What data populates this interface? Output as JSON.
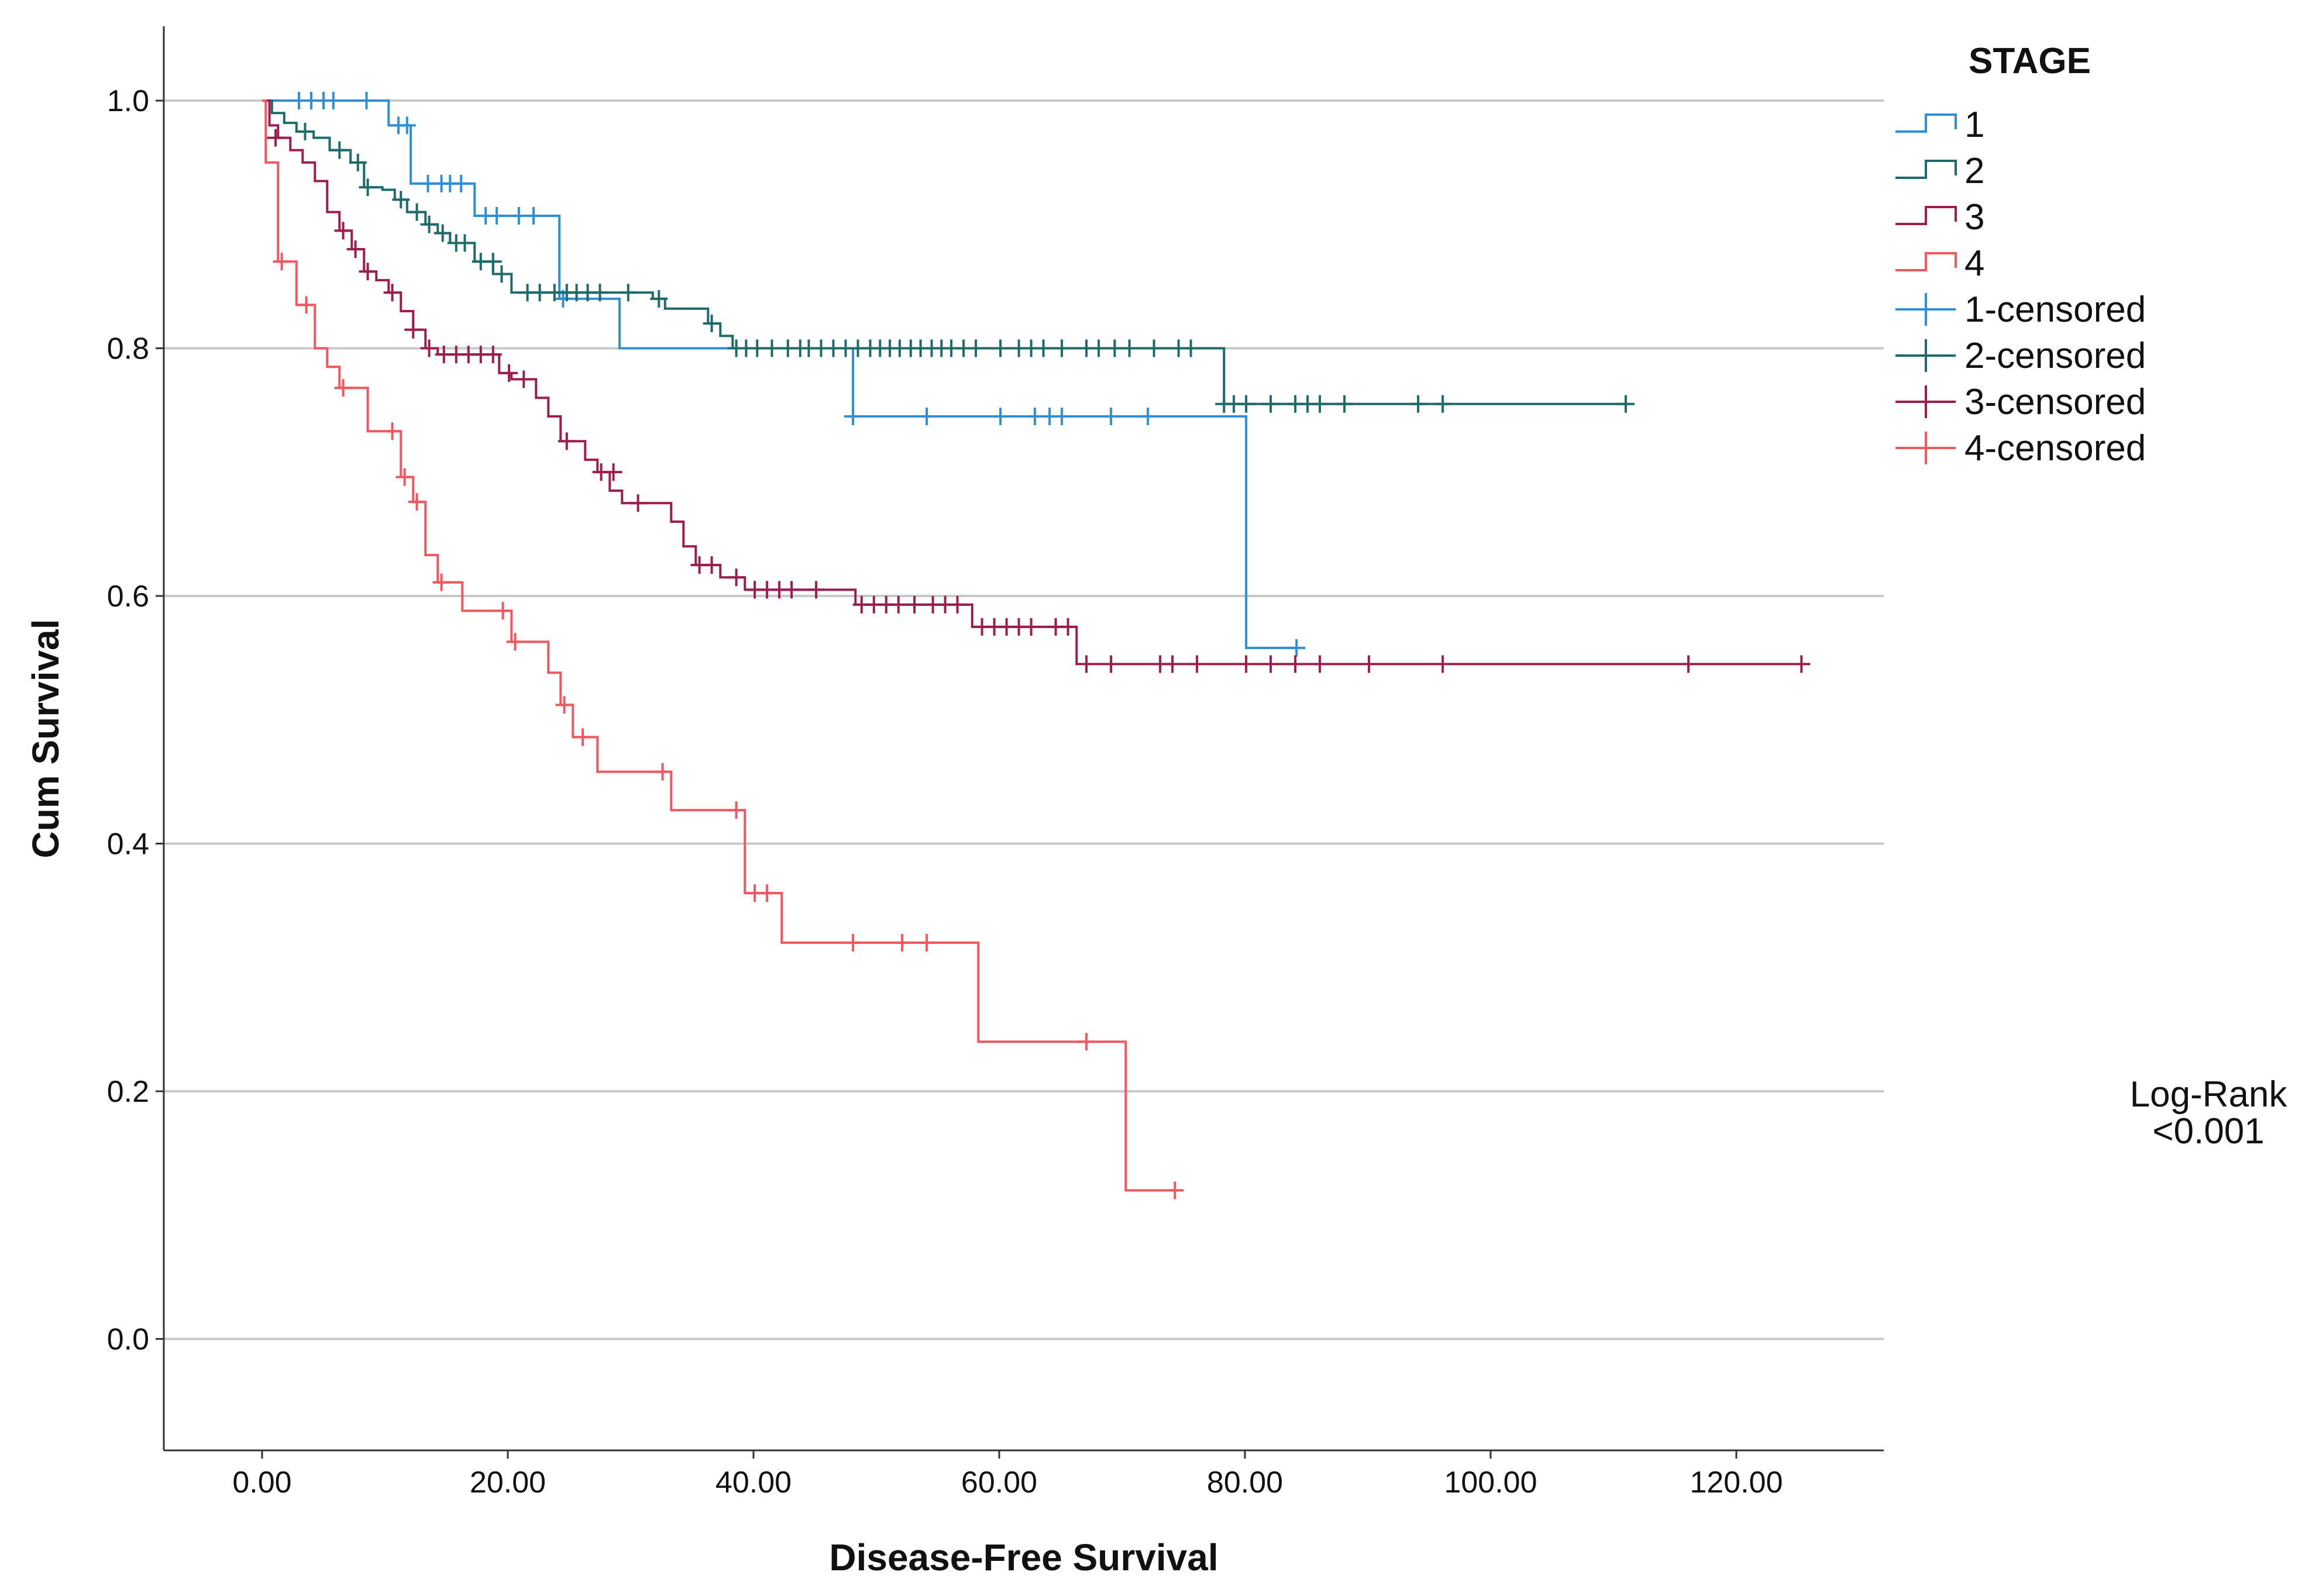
{
  "chart_data": {
    "type": "line",
    "subtype": "kaplan-meier step curves",
    "xlabel": "Disease-Free Survival",
    "ylabel": "Cum Survival",
    "xlim": [
      -8,
      132
    ],
    "ylim": [
      -0.09,
      1.06
    ],
    "x_ticks": [
      0,
      20,
      40,
      60,
      80,
      100,
      120
    ],
    "x_tick_labels": [
      "0.00",
      "20.00",
      "40.00",
      "60.00",
      "80.00",
      "100.00",
      "120.00"
    ],
    "y_ticks": [
      0.0,
      0.2,
      0.4,
      0.6,
      0.8,
      1.0
    ],
    "y_tick_labels": [
      "0.0",
      "0.2",
      "0.4",
      "0.6",
      "0.8",
      "1.0"
    ],
    "grid": "horizontal",
    "legend": {
      "title": "STAGE",
      "position": "right-top",
      "entries": [
        {
          "label": "1",
          "kind": "line",
          "series": 0
        },
        {
          "label": "2",
          "kind": "line",
          "series": 1
        },
        {
          "label": "3",
          "kind": "line",
          "series": 2
        },
        {
          "label": "4",
          "kind": "line",
          "series": 3
        },
        {
          "label": "1-censored",
          "kind": "censor",
          "series": 0
        },
        {
          "label": "2-censored",
          "kind": "censor",
          "series": 1
        },
        {
          "label": "3-censored",
          "kind": "censor",
          "series": 2
        },
        {
          "label": "4-censored",
          "kind": "censor",
          "series": 3
        }
      ]
    },
    "annotation": {
      "line1": "Log-Rank",
      "line2": "<0.001"
    },
    "series": [
      {
        "name": "1",
        "color": "#2e8fd6",
        "steps": [
          [
            0,
            1.0
          ],
          [
            10.3,
            0.98
          ],
          [
            12.1,
            0.933
          ],
          [
            17.3,
            0.907
          ],
          [
            24.2,
            0.84
          ],
          [
            29.1,
            0.8
          ],
          [
            48.1,
            0.745
          ],
          [
            80.1,
            0.558
          ],
          [
            84.2,
            0.558
          ]
        ],
        "censored": [
          [
            3,
            1.0
          ],
          [
            4,
            1.0
          ],
          [
            5,
            1.0
          ],
          [
            5.8,
            1.0
          ],
          [
            8.5,
            1.0
          ],
          [
            11.1,
            0.98
          ],
          [
            11.8,
            0.98
          ],
          [
            13.5,
            0.933
          ],
          [
            14.6,
            0.933
          ],
          [
            15.3,
            0.933
          ],
          [
            16.2,
            0.933
          ],
          [
            18.2,
            0.907
          ],
          [
            19.1,
            0.907
          ],
          [
            20.9,
            0.907
          ],
          [
            22.1,
            0.907
          ],
          [
            24.5,
            0.84
          ],
          [
            48.1,
            0.745
          ],
          [
            54.1,
            0.745
          ],
          [
            60.1,
            0.745
          ],
          [
            62.9,
            0.745
          ],
          [
            64.1,
            0.745
          ],
          [
            65.1,
            0.745
          ],
          [
            69.1,
            0.745
          ],
          [
            72.1,
            0.745
          ],
          [
            84.2,
            0.558
          ]
        ]
      },
      {
        "name": "2",
        "color": "#1f6b6b",
        "steps": [
          [
            0,
            1.0
          ],
          [
            0.8,
            0.99
          ],
          [
            1.8,
            0.982
          ],
          [
            2.8,
            0.975
          ],
          [
            4.2,
            0.97
          ],
          [
            5.5,
            0.96
          ],
          [
            7.2,
            0.95
          ],
          [
            8.3,
            0.93
          ],
          [
            9.8,
            0.928
          ],
          [
            10.8,
            0.92
          ],
          [
            11.8,
            0.91
          ],
          [
            13.3,
            0.9
          ],
          [
            14.3,
            0.893
          ],
          [
            15.3,
            0.885
          ],
          [
            17.3,
            0.87
          ],
          [
            18.8,
            0.86
          ],
          [
            20.3,
            0.845
          ],
          [
            31.8,
            0.84
          ],
          [
            32.8,
            0.832
          ],
          [
            36.3,
            0.82
          ],
          [
            37.3,
            0.81
          ],
          [
            38.3,
            0.8
          ],
          [
            78.3,
            0.755
          ],
          [
            111,
            0.755
          ]
        ],
        "censored": [
          [
            3.5,
            0.975
          ],
          [
            6.3,
            0.96
          ],
          [
            7.8,
            0.95
          ],
          [
            8.6,
            0.93
          ],
          [
            11.3,
            0.92
          ],
          [
            12.6,
            0.91
          ],
          [
            13.6,
            0.9
          ],
          [
            14.7,
            0.893
          ],
          [
            15.8,
            0.885
          ],
          [
            16.5,
            0.885
          ],
          [
            17.8,
            0.87
          ],
          [
            18.8,
            0.87
          ],
          [
            19.5,
            0.86
          ],
          [
            21.6,
            0.845
          ],
          [
            22.6,
            0.845
          ],
          [
            23.8,
            0.845
          ],
          [
            24.8,
            0.845
          ],
          [
            25.6,
            0.845
          ],
          [
            26.5,
            0.845
          ],
          [
            27.5,
            0.845
          ],
          [
            29.8,
            0.845
          ],
          [
            32.3,
            0.84
          ],
          [
            36.6,
            0.82
          ],
          [
            38.6,
            0.8
          ],
          [
            39.4,
            0.8
          ],
          [
            40.3,
            0.8
          ],
          [
            41.5,
            0.8
          ],
          [
            42.8,
            0.8
          ],
          [
            43.8,
            0.8
          ],
          [
            44.5,
            0.8
          ],
          [
            45.5,
            0.8
          ],
          [
            46.5,
            0.8
          ],
          [
            47.5,
            0.8
          ],
          [
            48.5,
            0.8
          ],
          [
            49.5,
            0.8
          ],
          [
            50.3,
            0.8
          ],
          [
            51.1,
            0.8
          ],
          [
            51.9,
            0.8
          ],
          [
            52.8,
            0.8
          ],
          [
            53.6,
            0.8
          ],
          [
            54.5,
            0.8
          ],
          [
            55.3,
            0.8
          ],
          [
            56.1,
            0.8
          ],
          [
            57.1,
            0.8
          ],
          [
            58.1,
            0.8
          ],
          [
            60.1,
            0.8
          ],
          [
            61.6,
            0.8
          ],
          [
            62.6,
            0.8
          ],
          [
            63.6,
            0.8
          ],
          [
            65.1,
            0.8
          ],
          [
            67.1,
            0.8
          ],
          [
            68.1,
            0.8
          ],
          [
            69.4,
            0.8
          ],
          [
            70.6,
            0.8
          ],
          [
            72.6,
            0.8
          ],
          [
            74.6,
            0.8
          ],
          [
            75.6,
            0.8
          ],
          [
            78.3,
            0.755
          ],
          [
            79.1,
            0.755
          ],
          [
            80.1,
            0.755
          ],
          [
            82.1,
            0.755
          ],
          [
            84.1,
            0.755
          ],
          [
            85.1,
            0.755
          ],
          [
            86.1,
            0.755
          ],
          [
            88.1,
            0.755
          ],
          [
            94.1,
            0.755
          ],
          [
            96.1,
            0.755
          ],
          [
            111,
            0.755
          ]
        ]
      },
      {
        "name": "3",
        "color": "#9b1e4e",
        "steps": [
          [
            0,
            1.0
          ],
          [
            0.6,
            0.98
          ],
          [
            1.3,
            0.97
          ],
          [
            2.3,
            0.96
          ],
          [
            3.3,
            0.95
          ],
          [
            4.3,
            0.935
          ],
          [
            5.3,
            0.91
          ],
          [
            6.3,
            0.895
          ],
          [
            7.3,
            0.88
          ],
          [
            8.3,
            0.862
          ],
          [
            9.3,
            0.855
          ],
          [
            10.3,
            0.845
          ],
          [
            11.3,
            0.83
          ],
          [
            12.3,
            0.815
          ],
          [
            13.3,
            0.8
          ],
          [
            14.3,
            0.795
          ],
          [
            19.3,
            0.78
          ],
          [
            20.3,
            0.775
          ],
          [
            22.3,
            0.76
          ],
          [
            23.3,
            0.745
          ],
          [
            24.3,
            0.725
          ],
          [
            26.3,
            0.71
          ],
          [
            27.3,
            0.7
          ],
          [
            28.3,
            0.685
          ],
          [
            29.3,
            0.675
          ],
          [
            33.3,
            0.66
          ],
          [
            34.3,
            0.64
          ],
          [
            35.3,
            0.625
          ],
          [
            37.3,
            0.615
          ],
          [
            39.3,
            0.605
          ],
          [
            48.3,
            0.593
          ],
          [
            57.8,
            0.575
          ],
          [
            66.3,
            0.545
          ],
          [
            125.3,
            0.545
          ]
        ],
        "censored": [
          [
            1.1,
            0.97
          ],
          [
            6.6,
            0.895
          ],
          [
            7.6,
            0.88
          ],
          [
            8.6,
            0.862
          ],
          [
            10.6,
            0.845
          ],
          [
            12.3,
            0.815
          ],
          [
            13.6,
            0.8
          ],
          [
            14.8,
            0.795
          ],
          [
            15.8,
            0.795
          ],
          [
            16.8,
            0.795
          ],
          [
            17.8,
            0.795
          ],
          [
            18.8,
            0.795
          ],
          [
            20.1,
            0.78
          ],
          [
            21.3,
            0.775
          ],
          [
            24.8,
            0.725
          ],
          [
            27.6,
            0.7
          ],
          [
            28.6,
            0.7
          ],
          [
            30.6,
            0.675
          ],
          [
            35.6,
            0.625
          ],
          [
            36.6,
            0.625
          ],
          [
            38.6,
            0.615
          ],
          [
            40.1,
            0.605
          ],
          [
            41.1,
            0.605
          ],
          [
            42.1,
            0.605
          ],
          [
            43.1,
            0.605
          ],
          [
            45.1,
            0.605
          ],
          [
            48.8,
            0.593
          ],
          [
            49.8,
            0.593
          ],
          [
            50.8,
            0.593
          ],
          [
            51.8,
            0.593
          ],
          [
            53.1,
            0.593
          ],
          [
            54.6,
            0.593
          ],
          [
            55.6,
            0.593
          ],
          [
            56.6,
            0.593
          ],
          [
            58.6,
            0.575
          ],
          [
            59.6,
            0.575
          ],
          [
            60.6,
            0.575
          ],
          [
            61.6,
            0.575
          ],
          [
            62.6,
            0.575
          ],
          [
            64.6,
            0.575
          ],
          [
            65.6,
            0.575
          ],
          [
            67.1,
            0.545
          ],
          [
            69.1,
            0.545
          ],
          [
            73.1,
            0.545
          ],
          [
            74.1,
            0.545
          ],
          [
            76.1,
            0.545
          ],
          [
            80.1,
            0.545
          ],
          [
            82.1,
            0.545
          ],
          [
            84.1,
            0.545
          ],
          [
            86.1,
            0.545
          ],
          [
            90.1,
            0.545
          ],
          [
            96.1,
            0.545
          ],
          [
            116.1,
            0.545
          ],
          [
            125.3,
            0.545
          ]
        ]
      },
      {
        "name": "4",
        "color": "#f0575e",
        "steps": [
          [
            0,
            1.0
          ],
          [
            0.3,
            0.95
          ],
          [
            1.3,
            0.87
          ],
          [
            2.8,
            0.835
          ],
          [
            4.3,
            0.8
          ],
          [
            5.3,
            0.785
          ],
          [
            6.3,
            0.768
          ],
          [
            8.6,
            0.733
          ],
          [
            11.3,
            0.696
          ],
          [
            12.3,
            0.676
          ],
          [
            13.3,
            0.633
          ],
          [
            14.3,
            0.611
          ],
          [
            16.3,
            0.588
          ],
          [
            20.3,
            0.563
          ],
          [
            23.3,
            0.538
          ],
          [
            24.3,
            0.512
          ],
          [
            25.3,
            0.486
          ],
          [
            27.3,
            0.458
          ],
          [
            33.3,
            0.427
          ],
          [
            39.3,
            0.36
          ],
          [
            42.3,
            0.32
          ],
          [
            58.3,
            0.24
          ],
          [
            70.3,
            0.12
          ],
          [
            74.3,
            0.12
          ]
        ],
        "censored": [
          [
            1.6,
            0.87
          ],
          [
            3.6,
            0.835
          ],
          [
            6.6,
            0.768
          ],
          [
            10.6,
            0.733
          ],
          [
            11.6,
            0.696
          ],
          [
            12.6,
            0.676
          ],
          [
            14.6,
            0.611
          ],
          [
            19.6,
            0.588
          ],
          [
            20.6,
            0.563
          ],
          [
            24.6,
            0.512
          ],
          [
            26.1,
            0.486
          ],
          [
            32.6,
            0.458
          ],
          [
            38.6,
            0.427
          ],
          [
            40.1,
            0.36
          ],
          [
            41.1,
            0.36
          ],
          [
            48.1,
            0.32
          ],
          [
            52.1,
            0.32
          ],
          [
            54.1,
            0.32
          ],
          [
            67.1,
            0.24
          ],
          [
            74.3,
            0.12
          ]
        ]
      }
    ]
  }
}
